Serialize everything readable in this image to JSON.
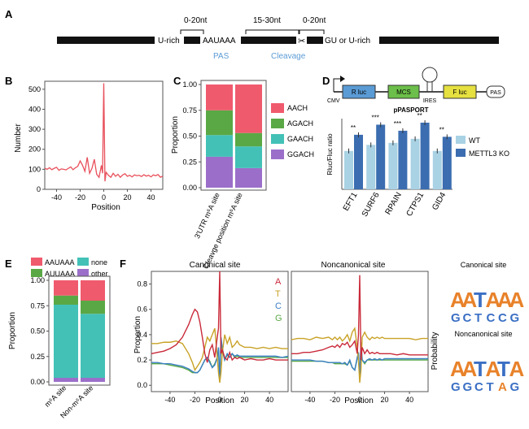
{
  "panel_a": {
    "label": "A",
    "u_rich": "U-rich",
    "pas_motif": "AAUAAA",
    "gu_rich": "GU or U-rich",
    "dist1": "0-20nt",
    "dist2": "15-30nt",
    "dist3": "0-20nt",
    "pas_label": "PAS",
    "cleavage_label": "Cleavage",
    "accent_color": "#5b9bd5"
  },
  "chart_data": [
    {
      "id": "panel_b",
      "label": "B",
      "type": "line",
      "xlabel": "Position",
      "ylabel": "Number",
      "xlim": [
        -50,
        50
      ],
      "ylim": [
        0,
        540
      ],
      "xticks": [
        -40,
        -20,
        0,
        20,
        40
      ],
      "yticks": [
        0,
        100,
        200,
        300,
        400,
        500
      ],
      "color": "#e8505b",
      "x": [
        -50,
        -48,
        -46,
        -44,
        -42,
        -40,
        -38,
        -36,
        -34,
        -32,
        -30,
        -28,
        -26,
        -24,
        -22,
        -20,
        -18,
        -16,
        -14,
        -12,
        -10,
        -8,
        -6,
        -4,
        -2,
        -1,
        0,
        1,
        2,
        4,
        6,
        8,
        10,
        12,
        14,
        16,
        18,
        20,
        22,
        24,
        26,
        28,
        30,
        32,
        34,
        36,
        38,
        40,
        42,
        44,
        46,
        48,
        50
      ],
      "values": [
        105,
        100,
        108,
        98,
        105,
        110,
        95,
        102,
        100,
        97,
        105,
        112,
        98,
        108,
        115,
        142,
        120,
        90,
        160,
        80,
        105,
        150,
        75,
        60,
        120,
        80,
        530,
        40,
        85,
        70,
        60,
        80,
        65,
        75,
        60,
        72,
        78,
        65,
        70,
        62,
        72,
        68,
        70,
        64,
        73,
        66,
        70,
        62,
        72,
        68,
        74,
        60,
        66
      ]
    },
    {
      "id": "panel_c",
      "label": "C",
      "type": "bar",
      "stacked": true,
      "ylabel": "Proportion",
      "ylim": [
        0,
        1
      ],
      "yticks": [
        "0.00",
        "0.25",
        "0.50",
        "0.75",
        "1.00"
      ],
      "categories": [
        "3'UTR m⁶A site",
        "Cleavge position m⁶A site"
      ],
      "series": [
        {
          "name": "GGACH",
          "color": "#9b6fc9",
          "values": [
            0.3,
            0.19
          ]
        },
        {
          "name": "GAACH",
          "color": "#43c1b7",
          "values": [
            0.21,
            0.21
          ]
        },
        {
          "name": "AGACH",
          "color": "#5aa845",
          "values": [
            0.24,
            0.13
          ]
        },
        {
          "name": "AACH",
          "color": "#f05a6d",
          "values": [
            0.25,
            0.47
          ]
        }
      ]
    },
    {
      "id": "panel_d",
      "label": "D",
      "type": "bar",
      "title": "pPASPORT",
      "ylabel": "Rluc/Fluc ratio",
      "categories": [
        "EFT1",
        "SURF6",
        "RPAIN",
        "CTPS1",
        "GID4"
      ],
      "significance": [
        "**",
        "***",
        "***",
        "**",
        "**"
      ],
      "ylim": [
        0,
        0.35
      ],
      "series": [
        {
          "name": "WT",
          "color": "#a9d2e4",
          "values": [
            0.19,
            0.22,
            0.23,
            0.25,
            0.19
          ]
        },
        {
          "name": "METTL3 KO",
          "color": "#3b6db0",
          "values": [
            0.27,
            0.32,
            0.29,
            0.33,
            0.26
          ]
        }
      ]
    },
    {
      "id": "panel_e",
      "label": "E",
      "type": "bar",
      "stacked": true,
      "ylabel": "Proportion",
      "ylim": [
        0,
        1
      ],
      "yticks": [
        "0.00",
        "0.25",
        "0.50",
        "0.75",
        "1.00"
      ],
      "categories": [
        "m⁶A site",
        "Non-m⁶A site"
      ],
      "series": [
        {
          "name": "other",
          "color": "#9b6fc9",
          "values": [
            0.04,
            0.04
          ]
        },
        {
          "name": "none",
          "color": "#43c1b7",
          "values": [
            0.72,
            0.63
          ]
        },
        {
          "name": "AUUAAA",
          "color": "#5aa845",
          "values": [
            0.09,
            0.13
          ]
        },
        {
          "name": "AAUAAA",
          "color": "#f05a6d",
          "values": [
            0.15,
            0.2
          ]
        }
      ]
    },
    {
      "id": "panel_f",
      "label": "F",
      "type": "line",
      "ylabel": "Proportion",
      "xlabel": "Position",
      "xlim": [
        -55,
        55
      ],
      "ylim": [
        -0.05,
        0.9
      ],
      "xticks": [
        -40,
        -20,
        0,
        20,
        40
      ],
      "yticks": [
        "0.0",
        "0.2",
        "0.4",
        "0.6",
        "0.8"
      ],
      "x": [
        -55,
        -50,
        -45,
        -40,
        -35,
        -30,
        -25,
        -22,
        -20,
        -18,
        -16,
        -14,
        -12,
        -10,
        -8,
        -6,
        -4,
        -2,
        -1,
        0,
        1,
        2,
        4,
        6,
        8,
        10,
        12,
        14,
        16,
        18,
        20,
        25,
        30,
        35,
        40,
        45,
        50,
        55
      ],
      "subplots": [
        {
          "title": "Canonical site",
          "series": [
            {
              "name": "A",
              "color": "#c92a3a",
              "values": [
                0.25,
                0.26,
                0.27,
                0.29,
                0.32,
                0.38,
                0.48,
                0.56,
                0.6,
                0.58,
                0.5,
                0.38,
                0.25,
                0.18,
                0.28,
                0.32,
                0.22,
                0.38,
                0.45,
                0.9,
                0.25,
                0.28,
                0.22,
                0.2,
                0.26,
                0.2,
                0.22,
                0.21,
                0.22,
                0.21,
                0.2,
                0.21,
                0.2,
                0.2,
                0.21,
                0.2,
                0.2,
                0.2
              ]
            },
            {
              "name": "T",
              "color": "#c9a227",
              "values": [
                0.33,
                0.33,
                0.34,
                0.34,
                0.35,
                0.33,
                0.25,
                0.18,
                0.12,
                0.15,
                0.18,
                0.22,
                0.3,
                0.38,
                0.35,
                0.4,
                0.45,
                0.22,
                0.1,
                0.02,
                0.1,
                0.25,
                0.4,
                0.33,
                0.38,
                0.3,
                0.32,
                0.35,
                0.32,
                0.31,
                0.3,
                0.3,
                0.29,
                0.3,
                0.29,
                0.3,
                0.29,
                0.29
              ]
            },
            {
              "name": "C",
              "color": "#3a7fc4",
              "values": [
                0.18,
                0.18,
                0.17,
                0.17,
                0.16,
                0.15,
                0.13,
                0.11,
                0.1,
                0.1,
                0.12,
                0.16,
                0.2,
                0.22,
                0.18,
                0.14,
                0.16,
                0.22,
                0.3,
                0.05,
                0.38,
                0.3,
                0.2,
                0.25,
                0.22,
                0.25,
                0.23,
                0.24,
                0.23,
                0.23,
                0.23,
                0.23,
                0.23,
                0.23,
                0.23,
                0.23,
                0.22,
                0.23
              ]
            },
            {
              "name": "G",
              "color": "#5aa845",
              "values": [
                0.17,
                0.17,
                0.17,
                0.16,
                0.15,
                0.14,
                0.12,
                0.1,
                0.1,
                0.1,
                0.12,
                0.16,
                0.2,
                0.22,
                0.19,
                0.14,
                0.17,
                0.22,
                0.28,
                0.04,
                0.36,
                0.28,
                0.2,
                0.24,
                0.22,
                0.25,
                0.22,
                0.23,
                0.22,
                0.22,
                0.22,
                0.22,
                0.22,
                0.22,
                0.22,
                0.22,
                0.22,
                0.22
              ]
            }
          ]
        },
        {
          "title": "Noncanonical site",
          "series": [
            {
              "name": "A",
              "color": "#c92a3a",
              "values": [
                0.25,
                0.25,
                0.26,
                0.26,
                0.27,
                0.28,
                0.3,
                0.31,
                0.3,
                0.32,
                0.3,
                0.33,
                0.32,
                0.34,
                0.3,
                0.32,
                0.35,
                0.25,
                0.4,
                0.87,
                0.2,
                0.3,
                0.25,
                0.28,
                0.25,
                0.26,
                0.25,
                0.26,
                0.25,
                0.25,
                0.25,
                0.25,
                0.24,
                0.25,
                0.24,
                0.24,
                0.24,
                0.24
              ]
            },
            {
              "name": "T",
              "color": "#c9a227",
              "values": [
                0.36,
                0.37,
                0.37,
                0.36,
                0.38,
                0.37,
                0.38,
                0.36,
                0.38,
                0.36,
                0.38,
                0.35,
                0.37,
                0.4,
                0.35,
                0.42,
                0.45,
                0.3,
                0.2,
                0.02,
                0.12,
                0.38,
                0.42,
                0.38,
                0.36,
                0.38,
                0.37,
                0.38,
                0.37,
                0.38,
                0.37,
                0.37,
                0.37,
                0.37,
                0.37,
                0.36,
                0.37,
                0.37
              ]
            },
            {
              "name": "C",
              "color": "#3a7fc4",
              "values": [
                0.2,
                0.2,
                0.2,
                0.2,
                0.19,
                0.19,
                0.18,
                0.18,
                0.18,
                0.18,
                0.18,
                0.17,
                0.18,
                0.16,
                0.2,
                0.14,
                0.12,
                0.22,
                0.26,
                0.06,
                0.34,
                0.2,
                0.18,
                0.2,
                0.21,
                0.2,
                0.21,
                0.2,
                0.21,
                0.2,
                0.21,
                0.21,
                0.21,
                0.21,
                0.21,
                0.21,
                0.21,
                0.21
              ]
            },
            {
              "name": "G",
              "color": "#5aa845",
              "values": [
                0.19,
                0.19,
                0.19,
                0.19,
                0.19,
                0.19,
                0.18,
                0.18,
                0.17,
                0.17,
                0.17,
                0.17,
                0.17,
                0.16,
                0.19,
                0.14,
                0.12,
                0.21,
                0.24,
                0.05,
                0.32,
                0.2,
                0.17,
                0.2,
                0.2,
                0.2,
                0.2,
                0.2,
                0.2,
                0.2,
                0.2,
                0.2,
                0.2,
                0.2,
                0.2,
                0.2,
                0.2,
                0.2
              ]
            }
          ]
        }
      ]
    }
  ],
  "panel_d_construct": {
    "promoter": "CMV",
    "blocks": [
      {
        "label": "R luc",
        "color": "#5b9bd5"
      },
      {
        "label": "MCS",
        "color": "#6cbf4a"
      },
      {
        "label": "IRES",
        "color": "#ffffff"
      },
      {
        "label": "F luc",
        "color": "#e6e040"
      },
      {
        "label": "PAS",
        "color": "#ffffff"
      }
    ]
  },
  "panel_f_logos": {
    "ylabel": "Probability",
    "logos": [
      {
        "title": "Canonical site",
        "sequence": [
          "A",
          "A",
          "T",
          "A",
          "A",
          "A"
        ],
        "secondary": [
          "G",
          "C",
          "T",
          "C",
          "C",
          "G"
        ]
      },
      {
        "title": "Noncanonical site",
        "sequence": [
          "A",
          "A",
          "T",
          "A",
          "T",
          "A"
        ],
        "secondary": [
          "G",
          "G",
          "C",
          "T",
          "A",
          "G"
        ]
      }
    ],
    "colors": {
      "A": "#e8822a",
      "T": "#3a6fc4",
      "C": "#3a6fc4",
      "G": "#3a6fc4"
    }
  }
}
